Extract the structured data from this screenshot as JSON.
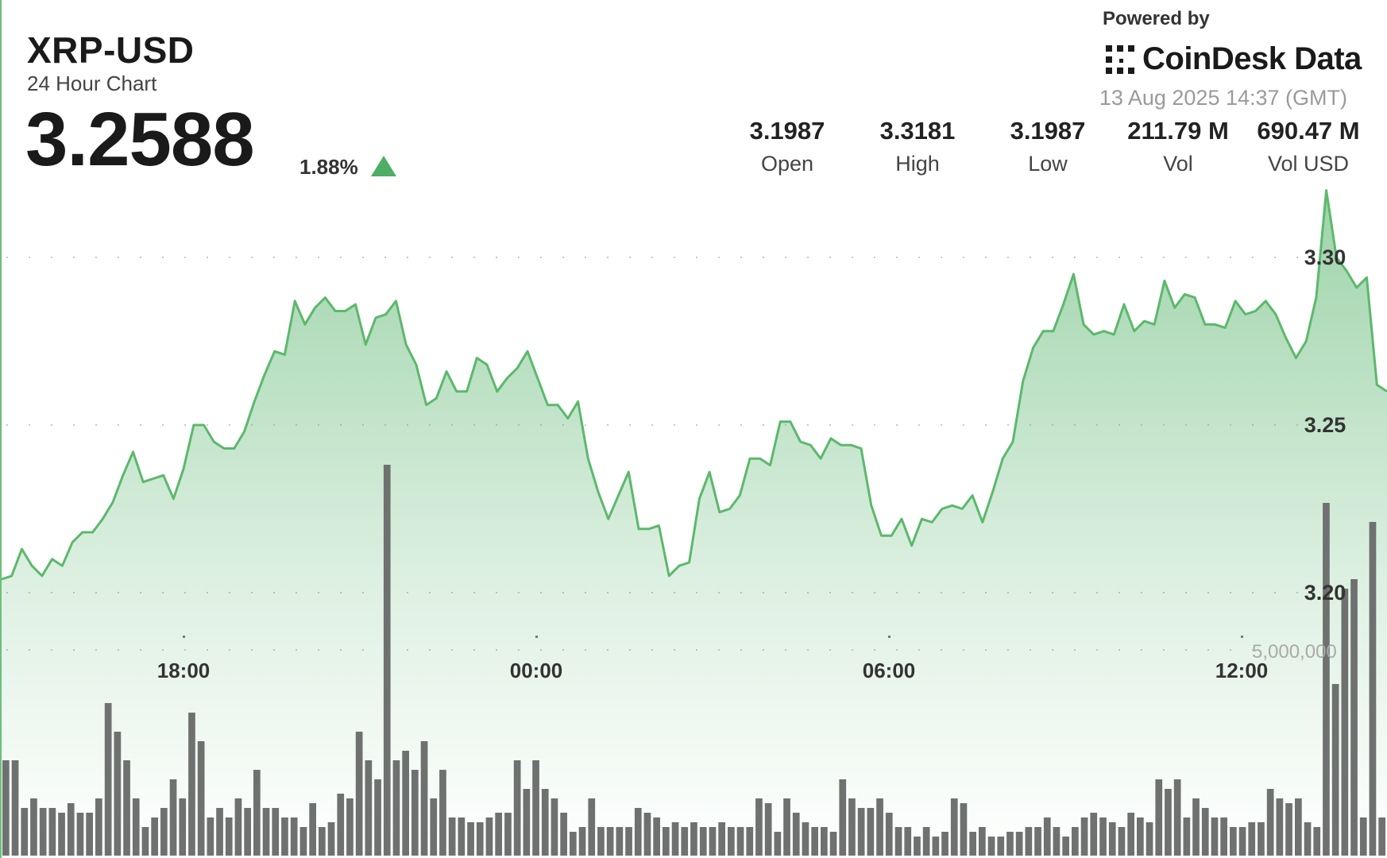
{
  "header": {
    "ticker": "XRP-USD",
    "subtitle": "24 Hour Chart",
    "price": "3.2588",
    "change": "1.88%",
    "powered_by": "Powered by",
    "brand": "CoinDesk Data",
    "timestamp": "13 Aug 2025 14:37 (GMT)"
  },
  "stats": [
    {
      "value": "3.1987",
      "label": "Open"
    },
    {
      "value": "3.3181",
      "label": "High"
    },
    {
      "value": "3.1987",
      "label": "Low"
    },
    {
      "value": "211.79 M",
      "label": "Vol"
    },
    {
      "value": "690.47 M",
      "label": "Vol USD"
    }
  ],
  "colors": {
    "line": "#5cb86c",
    "fill": "#4caf63",
    "volume": "#6e716f",
    "up": "#4caf63"
  },
  "chart_data": {
    "type": "line",
    "x_ticks": [
      "18:00",
      "00:00",
      "06:00",
      "12:00"
    ],
    "y_ticks": [
      "3.30",
      "3.25",
      "3.20"
    ],
    "volume_tick": "5,000,000",
    "grid": true,
    "series": [
      {
        "values": [
          3.204,
          3.205,
          3.213,
          3.208,
          3.205,
          3.21,
          3.208,
          3.215,
          3.218,
          3.218,
          3.222,
          3.227,
          3.235,
          3.242,
          3.233,
          3.234,
          3.235,
          3.228,
          3.237,
          3.25,
          3.25,
          3.245,
          3.243,
          3.243,
          3.248,
          3.257,
          3.265,
          3.272,
          3.271,
          3.287,
          3.28,
          3.285,
          3.288,
          3.284,
          3.284,
          3.286,
          3.274,
          3.282,
          3.283,
          3.287,
          3.274,
          3.268,
          3.256,
          3.258,
          3.266,
          3.26,
          3.26,
          3.27,
          3.268,
          3.26,
          3.264,
          3.267,
          3.272,
          3.264,
          3.256,
          3.256,
          3.252,
          3.257,
          3.24,
          3.23,
          3.222,
          3.229,
          3.236,
          3.219,
          3.219,
          3.22,
          3.205,
          3.208,
          3.209,
          3.228,
          3.236,
          3.224,
          3.225,
          3.229,
          3.24,
          3.24,
          3.238,
          3.251,
          3.251,
          3.245,
          3.244,
          3.24,
          3.246,
          3.244,
          3.244,
          3.243,
          3.226,
          3.217,
          3.217,
          3.222,
          3.214,
          3.222,
          3.221,
          3.225,
          3.226,
          3.225,
          3.229,
          3.221,
          3.23,
          3.24,
          3.245,
          3.263,
          3.273,
          3.278,
          3.278,
          3.286,
          3.295,
          3.28,
          3.277,
          3.278,
          3.277,
          3.286,
          3.278,
          3.281,
          3.28,
          3.293,
          3.285,
          3.289,
          3.288,
          3.28,
          3.28,
          3.279,
          3.287,
          3.283,
          3.284,
          3.287,
          3.283,
          3.276,
          3.27,
          3.275,
          3.288,
          3.32,
          3.3,
          3.296,
          3.291,
          3.294,
          3.262,
          3.26
        ]
      }
    ],
    "volume": [
      1.0,
      1.0,
      0.5,
      0.6,
      0.5,
      0.5,
      0.45,
      0.55,
      0.45,
      0.45,
      0.6,
      1.6,
      1.3,
      1.0,
      0.6,
      0.3,
      0.4,
      0.5,
      0.8,
      0.6,
      1.5,
      1.2,
      0.4,
      0.5,
      0.4,
      0.6,
      0.5,
      0.9,
      0.5,
      0.5,
      0.4,
      0.4,
      0.3,
      0.55,
      0.3,
      0.35,
      0.65,
      0.6,
      1.3,
      1.0,
      0.8,
      4.1,
      1.0,
      1.1,
      0.9,
      1.2,
      0.6,
      0.9,
      0.4,
      0.4,
      0.35,
      0.35,
      0.4,
      0.45,
      0.45,
      1.0,
      0.7,
      1.0,
      0.7,
      0.6,
      0.45,
      0.25,
      0.3,
      0.6,
      0.3,
      0.3,
      0.3,
      0.3,
      0.5,
      0.45,
      0.4,
      0.3,
      0.35,
      0.3,
      0.35,
      0.3,
      0.3,
      0.35,
      0.3,
      0.3,
      0.3,
      0.6,
      0.55,
      0.25,
      0.6,
      0.45,
      0.35,
      0.3,
      0.3,
      0.25,
      0.8,
      0.6,
      0.5,
      0.5,
      0.6,
      0.45,
      0.3,
      0.3,
      0.2,
      0.3,
      0.2,
      0.25,
      0.6,
      0.55,
      0.25,
      0.3,
      0.2,
      0.2,
      0.25,
      0.25,
      0.3,
      0.3,
      0.4,
      0.3,
      0.2,
      0.3,
      0.4,
      0.45,
      0.4,
      0.35,
      0.3,
      0.45,
      0.4,
      0.35,
      0.8,
      0.7,
      0.8,
      0.4,
      0.6,
      0.5,
      0.4,
      0.4,
      0.3,
      0.3,
      0.35,
      0.35,
      0.7,
      0.6,
      0.55,
      0.6,
      0.35,
      0.3,
      3.7,
      1.8,
      2.8,
      2.9,
      0.4,
      3.5,
      0.4
    ]
  }
}
